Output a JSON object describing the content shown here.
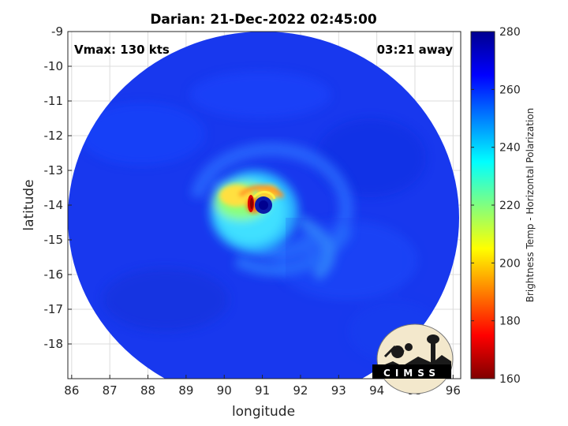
{
  "chart_data": {
    "type": "heatmap",
    "title": "Darian: 21-Dec-2022 02:45:00",
    "xlabel": "longitude",
    "ylabel": "latitude",
    "xlim": [
      85.9,
      96.2
    ],
    "ylim": [
      -19.0,
      -9.0
    ],
    "xticks": [
      "86",
      "87",
      "88",
      "89",
      "90",
      "91",
      "92",
      "93",
      "94",
      "95",
      "96"
    ],
    "yticks": [
      "-9",
      "-10",
      "-11",
      "-12",
      "-13",
      "-14",
      "-15",
      "-16",
      "-17",
      "-18"
    ],
    "grid": true,
    "annotations": {
      "vmax": "Vmax: 130 kts",
      "time_offset": "03:21 away"
    },
    "colorbar": {
      "label": "Brightness Temp - Horizontal Polarization",
      "range": [
        160,
        280
      ],
      "ticks": [
        "160",
        "180",
        "200",
        "220",
        "240",
        "260",
        "280"
      ],
      "colormap": "jet"
    },
    "field": {
      "background_temp": 262,
      "swath_center": [
        91.0,
        -14.0
      ],
      "eye_center": [
        91.0,
        -14.0
      ],
      "eyewall_min_temp": 170
    },
    "logo_text": "CIMSS"
  }
}
